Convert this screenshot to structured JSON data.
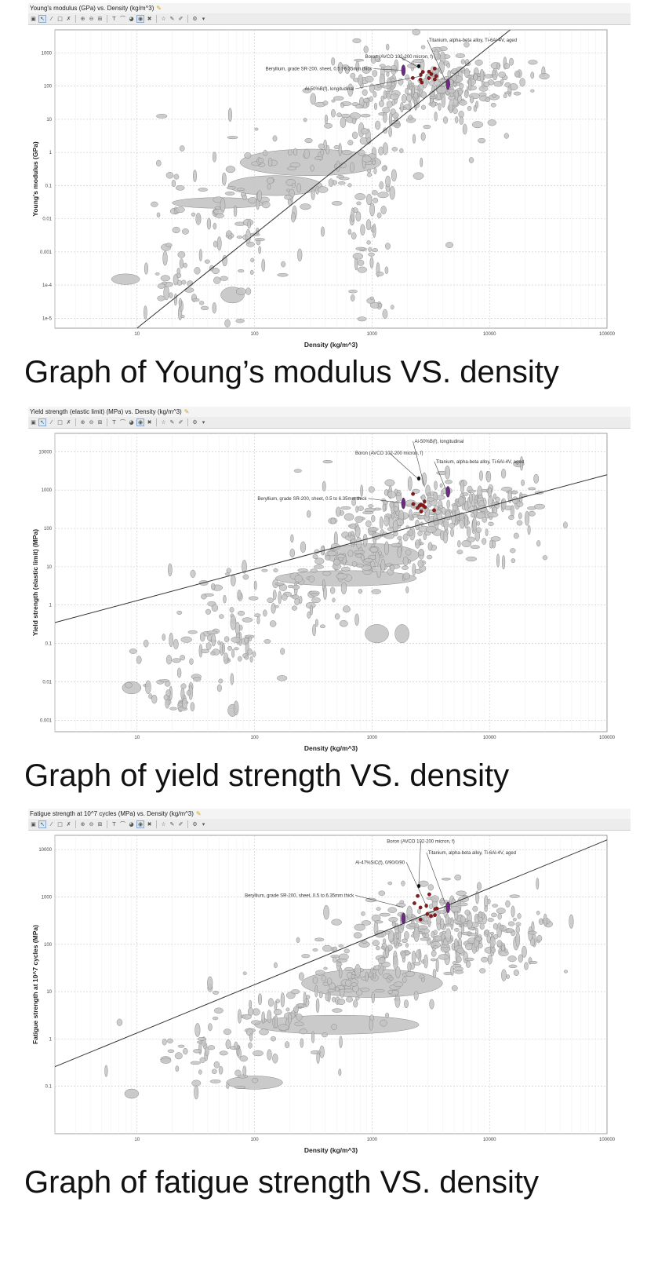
{
  "chart_data": [
    {
      "type": "scatter",
      "window_title": "Young's modulus (GPa) vs. Density (kg/m^3)",
      "xlabel": "Density (kg/m^3)",
      "ylabel": "Young's modulus (GPa)",
      "xscale": "log",
      "yscale": "log",
      "xlim": [
        2,
        100000
      ],
      "ylim": [
        5e-06,
        5000
      ],
      "xticks": [
        {
          "v": 10,
          "label": "10"
        },
        {
          "v": 100,
          "label": "100"
        },
        {
          "v": 1000,
          "label": "1000"
        },
        {
          "v": 10000,
          "label": "10000"
        },
        {
          "v": 100000,
          "label": "100000"
        }
      ],
      "yticks": [
        {
          "v": 1e-05,
          "label": "1e-5"
        },
        {
          "v": 0.0001,
          "label": "1e-4"
        },
        {
          "v": 0.001,
          "label": "0.001"
        },
        {
          "v": 0.01,
          "label": "0.01"
        },
        {
          "v": 0.1,
          "label": "0.1"
        },
        {
          "v": 1,
          "label": "1"
        },
        {
          "v": 10,
          "label": "10"
        },
        {
          "v": 100,
          "label": "100"
        },
        {
          "v": 1000,
          "label": "1000"
        }
      ],
      "grid": true,
      "guideline": [
        [
          10,
          5e-06
        ],
        [
          15000,
          5000
        ]
      ],
      "clusters": [
        {
          "x": 1000,
          "y": 0.01,
          "sx": 0.12,
          "sy": 2.2,
          "n": 90
        },
        {
          "x": 2000,
          "y": 50,
          "sx": 0.35,
          "sy": 0.7,
          "n": 170
        },
        {
          "x": 7000,
          "y": 150,
          "sx": 0.3,
          "sy": 0.4,
          "n": 110
        },
        {
          "x": 300,
          "y": 0.5,
          "sx": 0.4,
          "sy": 0.8,
          "n": 60
        },
        {
          "x": 60,
          "y": 0.01,
          "sx": 0.35,
          "sy": 1.0,
          "n": 80
        },
        {
          "x": 25,
          "y": 0.0001,
          "sx": 0.2,
          "sy": 0.6,
          "n": 40
        }
      ],
      "big_ellipses": [
        [
          300,
          0.5,
          0.3,
          0.2
        ],
        [
          150,
          0.1,
          0.2,
          0.15
        ],
        [
          8,
          0.00015,
          0.06,
          0.08
        ],
        [
          65,
          5e-05,
          0.05,
          0.12
        ],
        [
          50,
          0.03,
          0.2,
          0.08
        ]
      ],
      "highlights": [
        {
          "label": "Titanium, alpha-beta alloy, Ti-6Al-4V, aged",
          "x": 4430,
          "y": 114,
          "color": "#6e2a86"
        },
        {
          "label": "Boron (AVCO 102-200 micron, f)",
          "x": 2500,
          "y": 400,
          "color": "#111111"
        },
        {
          "label": "Beryllium, grade SR-200, sheet, 0.5 t 6.35mm thick",
          "x": 1850,
          "y": 300,
          "color": "#6e2a86"
        },
        {
          "label": "Al-50%B(f), longitudinal",
          "x": 2600,
          "y": 220,
          "color": "#8b1a1a"
        }
      ],
      "annotations": [
        {
          "text": "Titanium, alpha-beta alloy, Ti-6Al-4V, aged",
          "tx": 3050,
          "ty": 2200,
          "anchor": "start",
          "lx": 4200,
          "ly": 150
        },
        {
          "text": "Boron (AVCO 102-200 micron, f)",
          "tx": 1700,
          "ty": 700,
          "anchor": "middle",
          "lx": 2450,
          "ly": 380
        },
        {
          "text": "Beryllium, grade SR-200, sheet, 0.5 t 6.35mm thick",
          "tx": 1000,
          "ty": 300,
          "anchor": "end",
          "lx": 1850,
          "ly": 300
        },
        {
          "text": "Al-50%B(f), longitudinal",
          "tx": 700,
          "ty": 75,
          "anchor": "end",
          "lx": 2600,
          "ly": 200
        }
      ],
      "caption": "Graph of Young’s modulus VS. density"
    },
    {
      "type": "scatter",
      "window_title": "Yield strength (elastic limit) (MPa) vs. Density (kg/m^3)",
      "xlabel": "Density (kg/m^3)",
      "ylabel": "Yield strength (elastic limit) (MPa)",
      "xscale": "log",
      "yscale": "log",
      "xlim": [
        2,
        100000
      ],
      "ylim": [
        0.0005,
        30000
      ],
      "xticks": [
        {
          "v": 10,
          "label": "10"
        },
        {
          "v": 100,
          "label": "100"
        },
        {
          "v": 1000,
          "label": "1000"
        },
        {
          "v": 10000,
          "label": "10000"
        },
        {
          "v": 100000,
          "label": "100000"
        }
      ],
      "yticks": [
        {
          "v": 0.001,
          "label": "0.001"
        },
        {
          "v": 0.01,
          "label": "0.01"
        },
        {
          "v": 0.1,
          "label": "0.1"
        },
        {
          "v": 1,
          "label": "1"
        },
        {
          "v": 10,
          "label": "10"
        },
        {
          "v": 100,
          "label": "100"
        },
        {
          "v": 1000,
          "label": "1000"
        },
        {
          "v": 10000,
          "label": "10000"
        }
      ],
      "grid": true,
      "guideline": [
        [
          2,
          0.35
        ],
        [
          100000,
          2500
        ]
      ],
      "clusters": [
        {
          "x": 2500,
          "y": 200,
          "sx": 0.35,
          "sy": 0.5,
          "n": 170
        },
        {
          "x": 8000,
          "y": 300,
          "sx": 0.3,
          "sy": 0.5,
          "n": 110
        },
        {
          "x": 800,
          "y": 20,
          "sx": 0.3,
          "sy": 0.5,
          "n": 90
        },
        {
          "x": 200,
          "y": 2,
          "sx": 0.35,
          "sy": 0.5,
          "n": 70
        },
        {
          "x": 50,
          "y": 0.1,
          "sx": 0.3,
          "sy": 0.6,
          "n": 70
        },
        {
          "x": 20,
          "y": 0.005,
          "sx": 0.15,
          "sy": 0.3,
          "n": 30
        }
      ],
      "big_ellipses": [
        [
          1100,
          0.18,
          0.05,
          0.12
        ],
        [
          1800,
          0.18,
          0.03,
          0.12
        ],
        [
          1000,
          20,
          0.2,
          0.15
        ],
        [
          600,
          5,
          0.3,
          0.1
        ],
        [
          9,
          0.007,
          0.04,
          0.08
        ],
        [
          65,
          0.0018,
          0.02,
          0.08
        ]
      ],
      "highlights": [
        {
          "label": "Titanium, alpha-beta alloy, Ti-6Al-4V, aged",
          "x": 4430,
          "y": 900,
          "color": "#6e2a86"
        },
        {
          "label": "Boron (AVCO 102-200 micron, f)",
          "x": 2500,
          "y": 2000,
          "color": "#111111"
        },
        {
          "label": "Beryllium, grade SR-200, sheet, 0.5 to 6.35mm thick",
          "x": 1850,
          "y": 450,
          "color": "#6e2a86"
        },
        {
          "label": "Al-50%B(f), longitudinal",
          "x": 2800,
          "y": 500,
          "color": "#8b1a1a"
        }
      ],
      "annotations": [
        {
          "text": "Al-50%B(f), longitudinal",
          "tx": 2300,
          "ty": 17000,
          "anchor": "start",
          "lx": 2800,
          "ly": 1200
        },
        {
          "text": "Boron (AVCO 102-200 micron, f)",
          "tx": 1400,
          "ty": 8500,
          "anchor": "middle",
          "lx": 2450,
          "ly": 2000
        },
        {
          "text": "Titanium, alpha-beta alloy, Ti-6Al-4V, aged",
          "tx": 3500,
          "ty": 5000,
          "anchor": "start",
          "lx": 4300,
          "ly": 950
        },
        {
          "text": "Beryllium, grade SR-200, sheet, 0.5 to 6.35mm thick",
          "tx": 900,
          "ty": 550,
          "anchor": "end",
          "lx": 1850,
          "ly": 450
        }
      ],
      "caption": "Graph of yield strength VS. density"
    },
    {
      "type": "scatter",
      "window_title": "Fatigue strength at 10^7 cycles (MPa) vs. Density (kg/m^3)",
      "xlabel": "Density (kg/m^3)",
      "ylabel": "Fatigue strength at 10^7 cycles (MPa)",
      "xscale": "log",
      "yscale": "log",
      "xlim": [
        2,
        100000
      ],
      "ylim": [
        0.01,
        20000
      ],
      "xticks": [
        {
          "v": 10,
          "label": "10"
        },
        {
          "v": 100,
          "label": "100"
        },
        {
          "v": 1000,
          "label": "1000"
        },
        {
          "v": 10000,
          "label": "10000"
        },
        {
          "v": 100000,
          "label": "100000"
        }
      ],
      "yticks": [
        {
          "v": 0.1,
          "label": "0.1"
        },
        {
          "v": 1,
          "label": "1"
        },
        {
          "v": 10,
          "label": "10"
        },
        {
          "v": 100,
          "label": "100"
        },
        {
          "v": 1000,
          "label": "1000"
        },
        {
          "v": 10000,
          "label": "10000"
        }
      ],
      "grid": true,
      "guideline": [
        [
          2,
          0.26
        ],
        [
          100000,
          16000
        ]
      ],
      "clusters": [
        {
          "x": 3000,
          "y": 150,
          "sx": 0.35,
          "sy": 0.45,
          "n": 180
        },
        {
          "x": 9000,
          "y": 200,
          "sx": 0.3,
          "sy": 0.45,
          "n": 110
        },
        {
          "x": 800,
          "y": 20,
          "sx": 0.3,
          "sy": 0.45,
          "n": 90
        },
        {
          "x": 200,
          "y": 3,
          "sx": 0.35,
          "sy": 0.45,
          "n": 70
        },
        {
          "x": 50,
          "y": 0.5,
          "sx": 0.3,
          "sy": 0.4,
          "n": 50
        }
      ],
      "big_ellipses": [
        [
          500,
          2,
          0.35,
          0.1
        ],
        [
          100,
          0.12,
          0.12,
          0.07
        ],
        [
          1000,
          15,
          0.3,
          0.15
        ],
        [
          9,
          0.07,
          0.03,
          0.05
        ]
      ],
      "highlights": [
        {
          "label": "Titanium, alpha-beta alloy, Ti-6Al-4V, aged",
          "x": 4430,
          "y": 600,
          "color": "#6e2a86"
        },
        {
          "label": "Boron (AVCO 102-200 micron, f)",
          "x": 2500,
          "y": 1700,
          "color": "#111111"
        },
        {
          "label": "Beryllium, grade SR-200, sheet, 0.5 to 6.35mm thick",
          "x": 1850,
          "y": 350,
          "color": "#6e2a86"
        },
        {
          "label": "Al-47%SiC(f), 0/90/0/90",
          "x": 2900,
          "y": 650,
          "color": "#8b1a1a"
        }
      ],
      "annotations": [
        {
          "text": "Boron (AVCO 102-200 micron, f)",
          "tx": 2600,
          "ty": 14000,
          "anchor": "middle",
          "lx": 2500,
          "ly": 1900
        },
        {
          "text": "Titanium, alpha-beta alloy, Ti-6Al-4V, aged",
          "tx": 3000,
          "ty": 8000,
          "anchor": "start",
          "lx": 4300,
          "ly": 620
        },
        {
          "text": "Al-47%SiC(f), 0/90/0/90",
          "tx": 1900,
          "ty": 5000,
          "anchor": "end",
          "lx": 2900,
          "ly": 650
        },
        {
          "text": "Beryllium, grade SR-200, sheet, 0.5 to 6.35mm thick",
          "tx": 700,
          "ty": 1000,
          "anchor": "end",
          "lx": 1850,
          "ly": 600
        }
      ],
      "caption": "Graph of fatigue strength VS. density"
    }
  ],
  "ui": {
    "bubble_fill": "#c4c4c4",
    "bubble_stroke": "#8a8a8a",
    "toolbar_icons": [
      "select-icon",
      "pointer-icon",
      "line-tool-icon",
      "box-select-icon",
      "highlight-icon",
      "zoom-in-icon",
      "zoom-out-icon",
      "fit-icon",
      "text-icon",
      "curve-icon",
      "color-icon",
      "view-icon",
      "delete-icon",
      "star-icon",
      "edit-icon",
      "pen-icon",
      "settings-icon"
    ]
  }
}
